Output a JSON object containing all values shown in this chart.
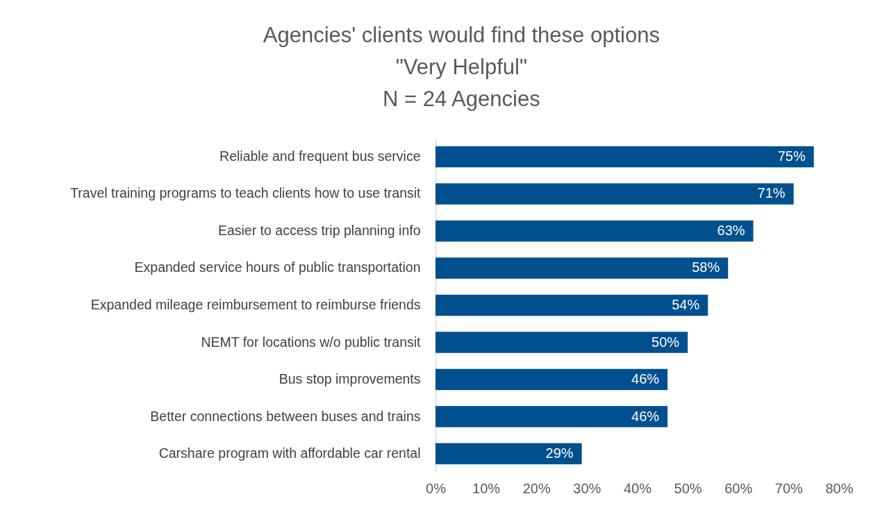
{
  "chart_data": {
    "type": "bar",
    "orientation": "horizontal",
    "title": "Agencies' clients would find these options\n\"Very Helpful\"\nN = 24 Agencies",
    "categories": [
      "Reliable and frequent bus service",
      "Travel training programs to teach clients how to use transit",
      "Easier to access trip planning info",
      "Expanded service hours of public transportation",
      "Expanded mileage reimbursement to reimburse friends",
      "NEMT for locations w/o public transit",
      "Bus stop improvements",
      "Better connections between buses and trains",
      "Carshare program with affordable car rental"
    ],
    "values": [
      75,
      71,
      63,
      58,
      54,
      50,
      46,
      46,
      29
    ],
    "value_labels": [
      "75%",
      "71%",
      "63%",
      "58%",
      "54%",
      "50%",
      "46%",
      "46%",
      "29%"
    ],
    "color": "#00508f",
    "xlim": [
      0,
      80
    ],
    "xticks": [
      {
        "value": 0,
        "label": "0%"
      },
      {
        "value": 10,
        "label": "10%"
      },
      {
        "value": 20,
        "label": "20%"
      },
      {
        "value": 30,
        "label": "30%"
      },
      {
        "value": 40,
        "label": "40%"
      },
      {
        "value": 50,
        "label": "50%"
      },
      {
        "value": 60,
        "label": "60%"
      },
      {
        "value": 70,
        "label": "70%"
      },
      {
        "value": 80,
        "label": "80%"
      }
    ],
    "grid": false
  }
}
